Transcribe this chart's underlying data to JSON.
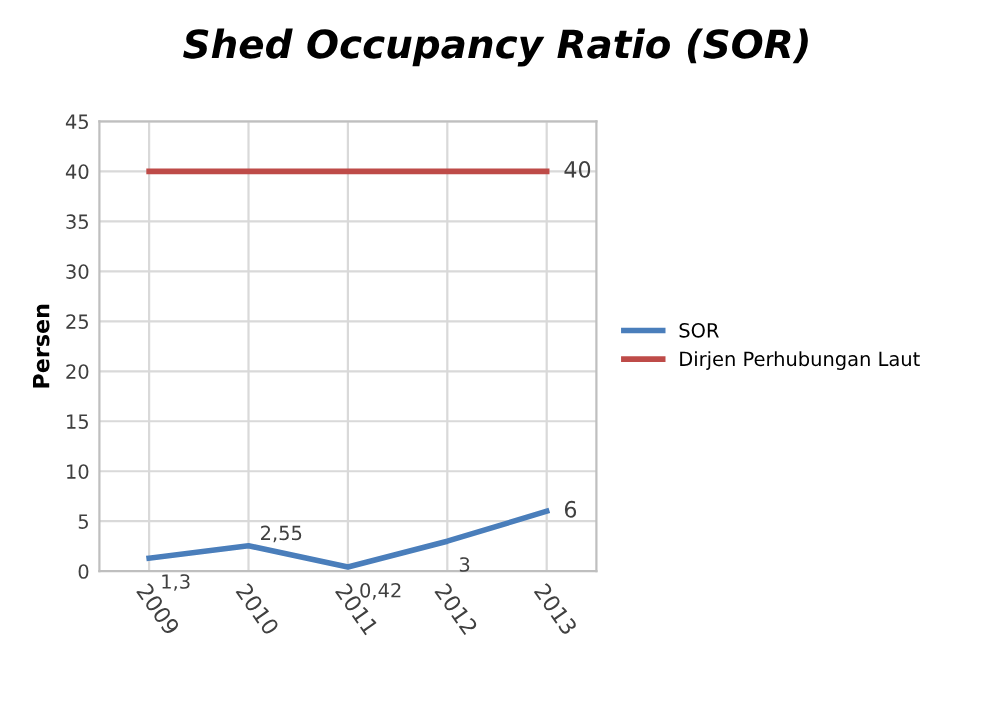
{
  "chart_data": {
    "type": "line",
    "title": "Shed Occupancy Ratio (SOR)",
    "ylabel": "Persen",
    "categories": [
      "2009",
      "2010",
      "2011",
      "2012",
      "2013"
    ],
    "series": [
      {
        "name": "SOR",
        "color": "#4a7ebb",
        "values": [
          1.3,
          2.55,
          0.42,
          3,
          6
        ],
        "value_labels": [
          "1,3",
          "2,55",
          "0,42",
          "3",
          "6"
        ]
      },
      {
        "name": "Dirjen Perhubungan Laut",
        "color": "#be4b48",
        "values": [
          40,
          40,
          40,
          40,
          40
        ],
        "value_labels": [
          null,
          null,
          null,
          null,
          "40"
        ]
      }
    ],
    "ylim": [
      0,
      45
    ],
    "yticks": [
      0,
      5,
      10,
      15,
      20,
      25,
      30,
      35,
      40,
      45
    ],
    "grid": true,
    "legend": "right",
    "marker": "none",
    "line_style": "solid"
  }
}
